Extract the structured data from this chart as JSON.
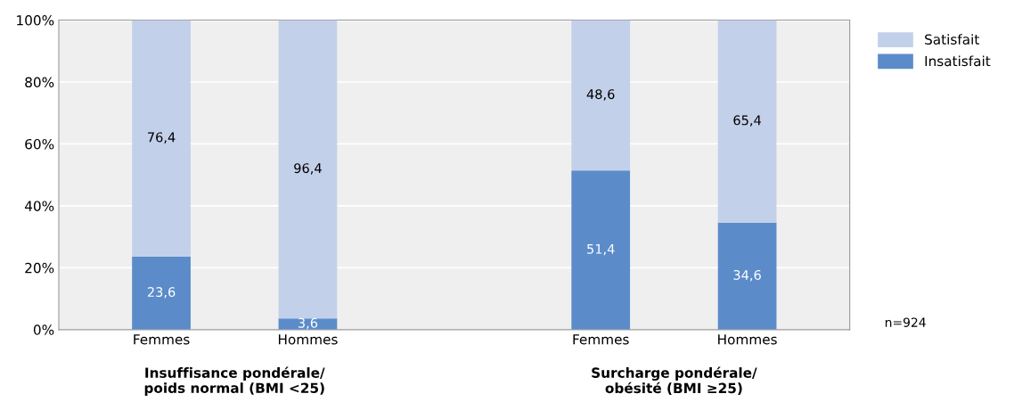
{
  "chart_data": {
    "type": "bar",
    "stacked": true,
    "categories": [
      "Femmes",
      "Hommes",
      null,
      "Femmes",
      "Hommes"
    ],
    "series": [
      {
        "name": "Insatisfait",
        "color": "#5b8cc9",
        "values": [
          23.6,
          3.6,
          null,
          51.4,
          34.6
        ],
        "value_labels": [
          "23,6",
          "3,6",
          null,
          "51,4",
          "34,6"
        ]
      },
      {
        "name": "Satisfait",
        "color": "#c3d0ea",
        "values": [
          76.4,
          96.4,
          null,
          48.6,
          65.4
        ],
        "value_labels": [
          "76,4",
          "96,4",
          null,
          "48,6",
          "65,4"
        ]
      }
    ],
    "ylim": [
      0,
      100
    ],
    "yticks": [
      {
        "value": 0,
        "label": "0%"
      },
      {
        "value": 20,
        "label": "20%"
      },
      {
        "value": 40,
        "label": "40%"
      },
      {
        "value": 60,
        "label": "60%"
      },
      {
        "value": 80,
        "label": "80%"
      },
      {
        "value": 100,
        "label": "100%"
      }
    ],
    "grid": "y",
    "legend": "top right",
    "annotations": [
      "Insuffisance pondérale/\npoids normal (BMI <25)",
      "Surcharge pondérale/\nobésité (BMI ≥25)",
      "n=924"
    ]
  }
}
